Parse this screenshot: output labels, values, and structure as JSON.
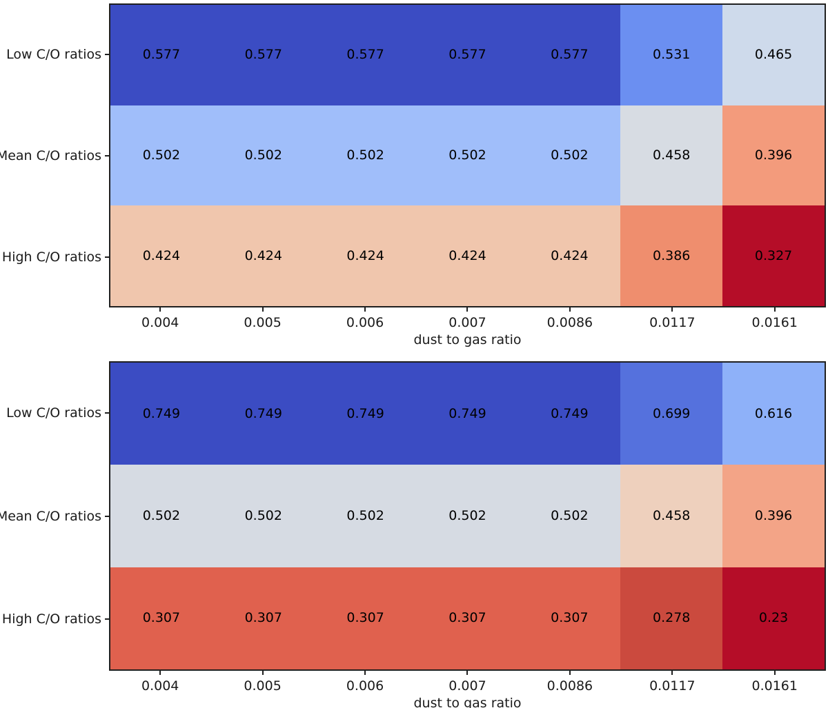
{
  "figure": {
    "background": "#ffffff",
    "border_color": "#1f1f1f",
    "text_color": "#000000",
    "colormap_min_color": "#b50d28",
    "colormap_max_color": "#3b4cc3"
  },
  "chart_data": [
    {
      "type": "heatmap",
      "title": "",
      "xlabel": "dust to gas ratio",
      "ylabel": "",
      "colormap": "coolwarm reversed (high=blue, low=red)",
      "grid": false,
      "legend": "none",
      "x_tick_labels": [
        "0.004",
        "0.005",
        "0.006",
        "0.007",
        "0.0086",
        "0.0117",
        "0.0161"
      ],
      "y_tick_labels": [
        "Low C/O ratios",
        "Mean C/O ratios",
        "High C/O ratios"
      ],
      "values": [
        [
          0.577,
          0.577,
          0.577,
          0.577,
          0.577,
          0.531,
          0.465
        ],
        [
          0.502,
          0.502,
          0.502,
          0.502,
          0.502,
          0.458,
          0.396
        ],
        [
          0.424,
          0.424,
          0.424,
          0.424,
          0.424,
          0.386,
          0.327
        ]
      ],
      "value_labels": [
        [
          "0.577",
          "0.577",
          "0.577",
          "0.577",
          "0.577",
          "0.531",
          "0.465"
        ],
        [
          "0.502",
          "0.502",
          "0.502",
          "0.502",
          "0.502",
          "0.458",
          "0.396"
        ],
        [
          "0.424",
          "0.424",
          "0.424",
          "0.424",
          "0.424",
          "0.386",
          "0.327"
        ]
      ],
      "cell_colors": [
        [
          "#3b4cc3",
          "#3b4cc3",
          "#3b4cc3",
          "#3b4cc3",
          "#3b4cc3",
          "#6b8ff1",
          "#cedaeb"
        ],
        [
          "#a0befa",
          "#a0befa",
          "#a0befa",
          "#a0befa",
          "#a0befa",
          "#d7dce3",
          "#f39b7c"
        ],
        [
          "#f0c6ad",
          "#f0c6ad",
          "#f0c6ad",
          "#f0c6ad",
          "#f0c6ad",
          "#ef8e6e",
          "#b50d28"
        ]
      ],
      "value_range": [
        0.327,
        0.577
      ]
    },
    {
      "type": "heatmap",
      "title": "",
      "xlabel": "dust to gas ratio",
      "ylabel": "",
      "colormap": "coolwarm reversed (high=blue, low=red)",
      "grid": false,
      "legend": "none",
      "x_tick_labels": [
        "0.004",
        "0.005",
        "0.006",
        "0.007",
        "0.0086",
        "0.0117",
        "0.0161"
      ],
      "y_tick_labels": [
        "Low C/O ratios",
        "Mean C/O ratios",
        "High C/O ratios"
      ],
      "values": [
        [
          0.749,
          0.749,
          0.749,
          0.749,
          0.749,
          0.699,
          0.616
        ],
        [
          0.502,
          0.502,
          0.502,
          0.502,
          0.502,
          0.458,
          0.396
        ],
        [
          0.307,
          0.307,
          0.307,
          0.307,
          0.307,
          0.278,
          0.23
        ]
      ],
      "value_labels": [
        [
          "0.749",
          "0.749",
          "0.749",
          "0.749",
          "0.749",
          "0.699",
          "0.616"
        ],
        [
          "0.502",
          "0.502",
          "0.502",
          "0.502",
          "0.502",
          "0.458",
          "0.396"
        ],
        [
          "0.307",
          "0.307",
          "0.307",
          "0.307",
          "0.307",
          "0.278",
          "0.23"
        ]
      ],
      "cell_colors": [
        [
          "#3b4cc3",
          "#3b4cc3",
          "#3b4cc3",
          "#3b4cc3",
          "#3b4cc3",
          "#5571dd",
          "#8eb1f9"
        ],
        [
          "#d6dbe3",
          "#d6dbe3",
          "#d6dbe3",
          "#d6dbe3",
          "#d6dbe3",
          "#eed0bd",
          "#f3a487"
        ],
        [
          "#e0614e",
          "#e0614e",
          "#e0614e",
          "#e0614e",
          "#e0614e",
          "#cb4a3e",
          "#b50d28"
        ]
      ],
      "value_range": [
        0.23,
        0.749
      ]
    }
  ]
}
